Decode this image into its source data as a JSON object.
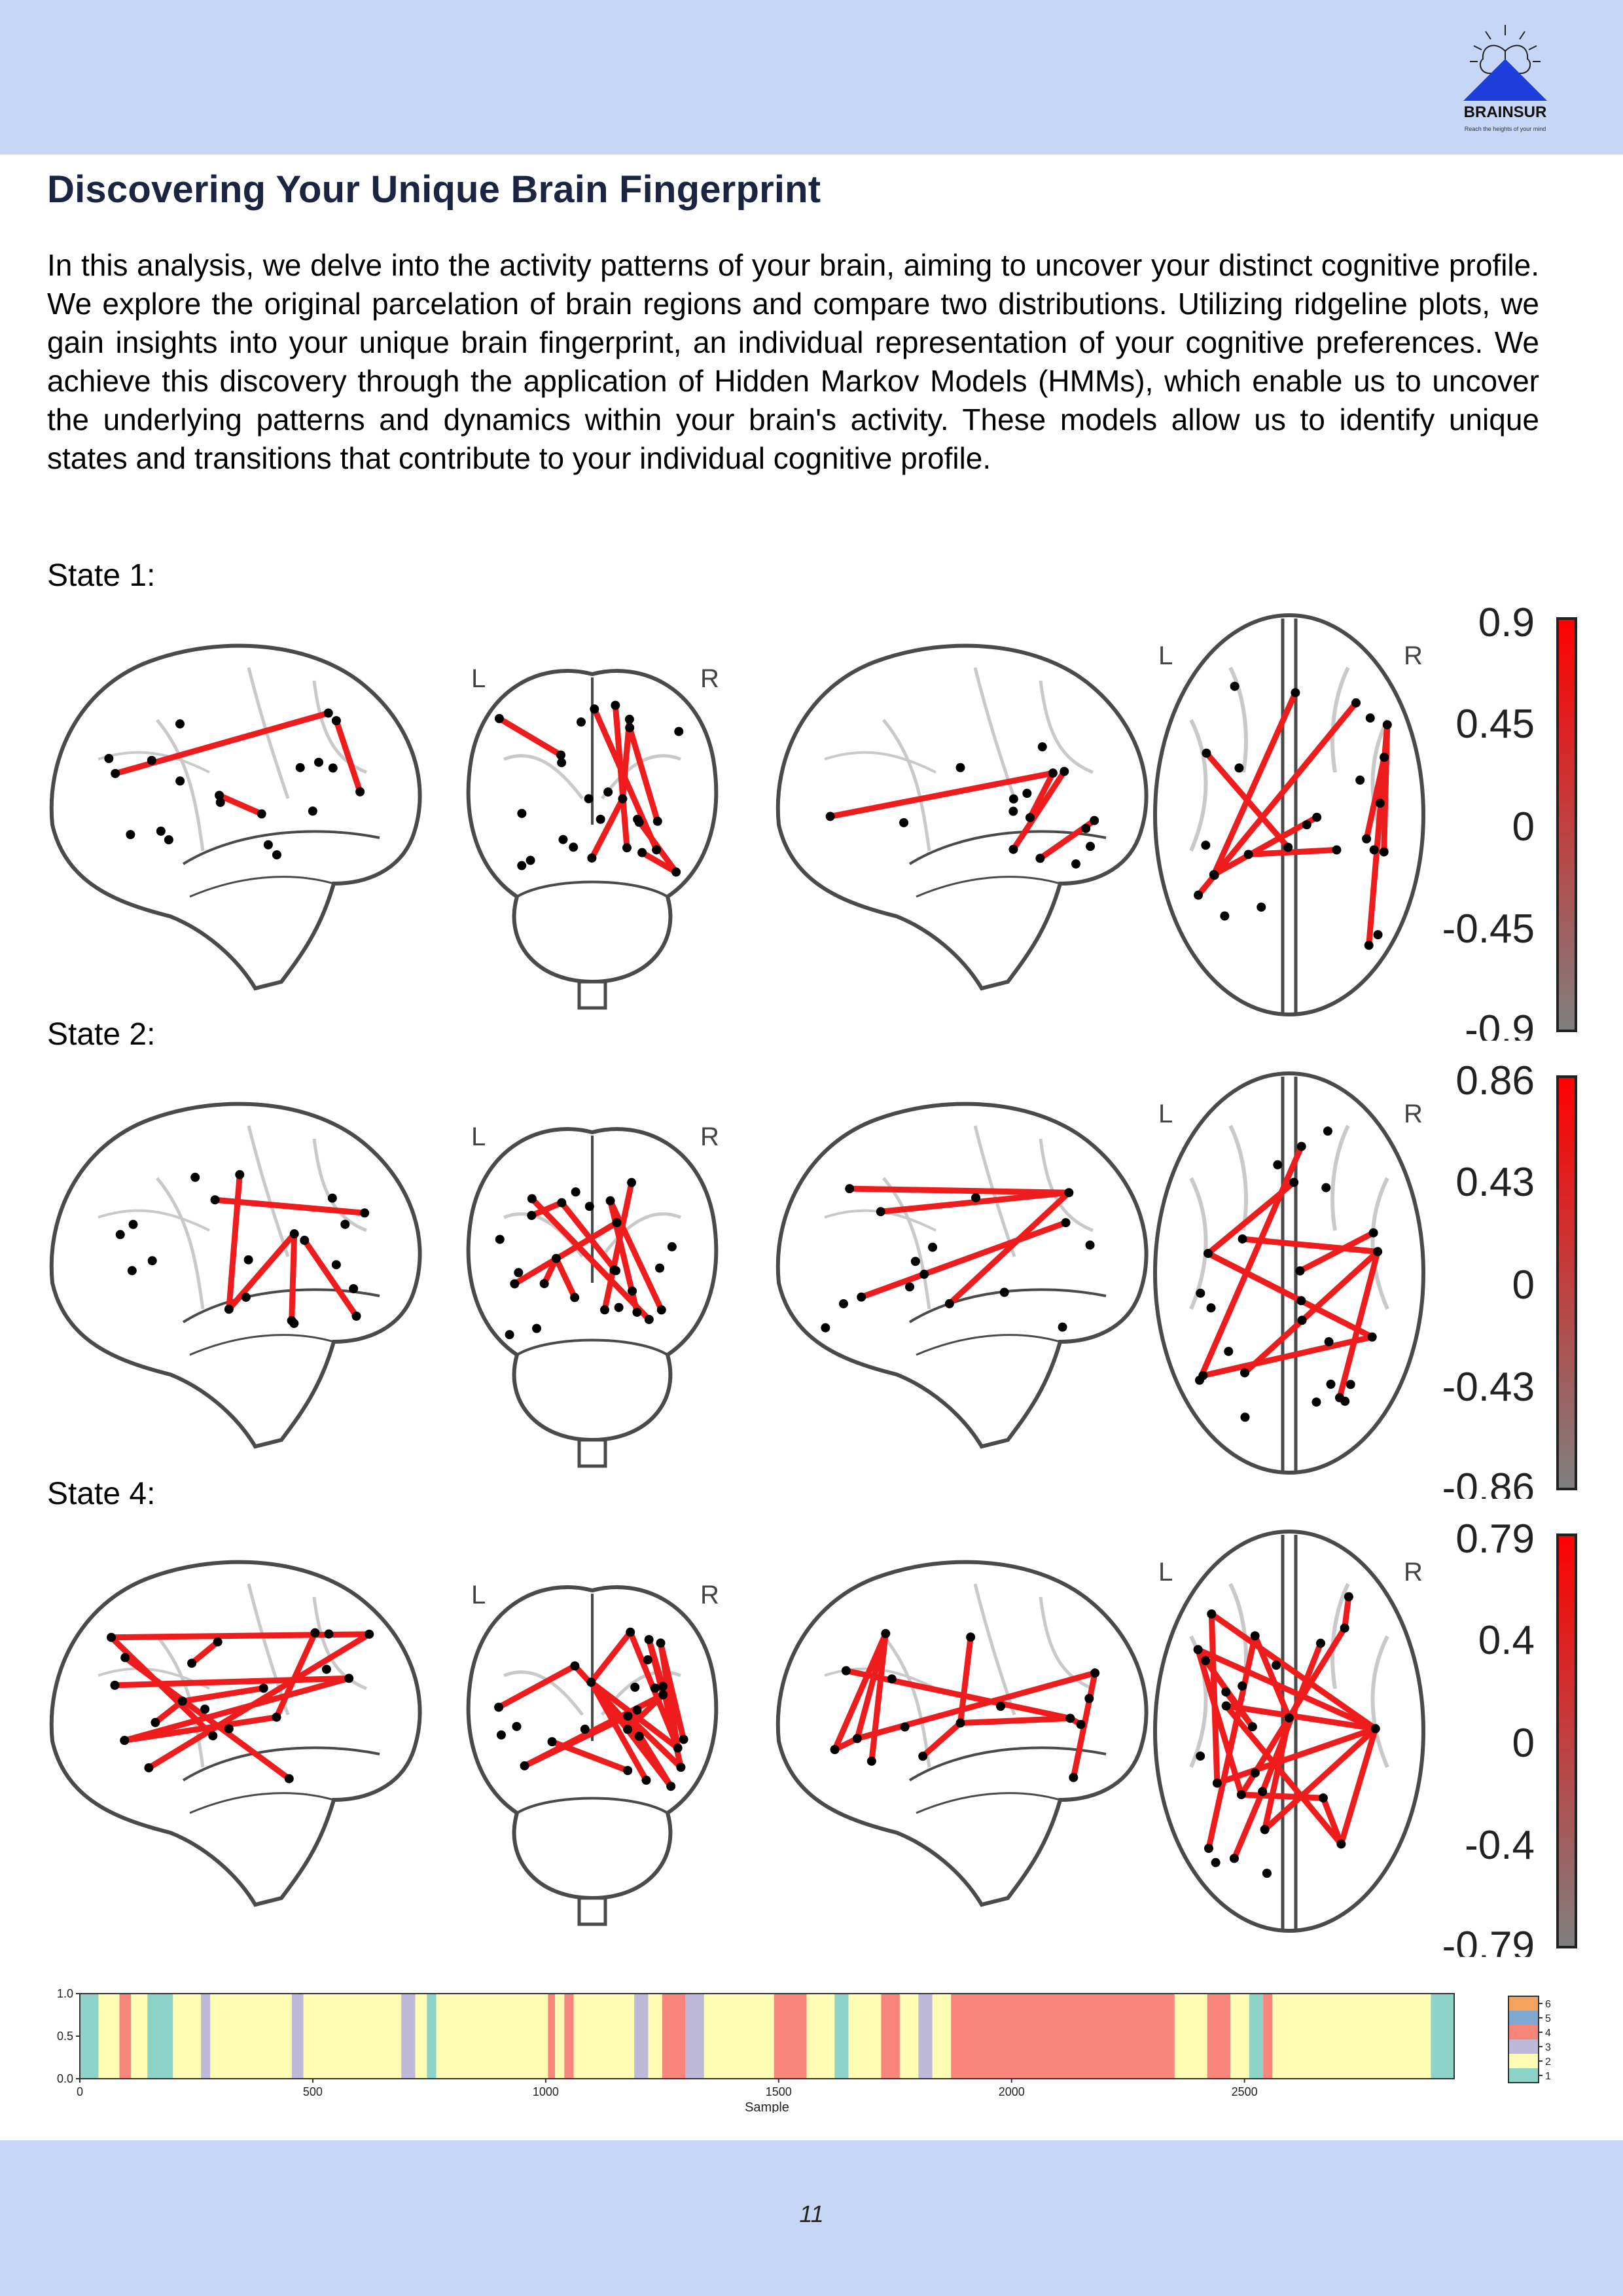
{
  "header": {
    "logo_name": "BRAINSUR",
    "logo_tagline": "Reach the heights of your mind"
  },
  "page_title": "Discovering Your Unique Brain Fingerprint",
  "intro": "In this analysis, we delve into the activity patterns of your brain, aiming to uncover your distinct cognitive profile. We explore the original parcelation of brain regions and compare two distributions. Utilizing ridgeline plots, we gain insights into your unique brain fingerprint, an individual representation of your cognitive preferences. We achieve this discovery through the application of Hidden Markov Models (HMMs), which enable us to uncover the underlying patterns and dynamics within your brain's activity. These models allow us to identify unique states and transitions that contribute to your individual cognitive profile.",
  "hemisphere_labels": {
    "left": "L",
    "right": "R"
  },
  "states": [
    {
      "label": "State 1:",
      "colorbar_ticks": [
        "0.9",
        "0.45",
        "0",
        "-0.45",
        "-0.9"
      ]
    },
    {
      "label": "State 2:",
      "colorbar_ticks": [
        "0.86",
        "0.43",
        "0",
        "-0.43",
        "-0.86"
      ]
    },
    {
      "label": "State 4:",
      "colorbar_ticks": [
        "0.79",
        "0.4",
        "0",
        "-0.4",
        "-0.79"
      ]
    }
  ],
  "colors": {
    "band": "#c5d7f5",
    "title": "#1b2440",
    "connection": "#ee1c1c",
    "node": "#000000",
    "colorbar_top": "#ff0000",
    "colorbar_bottom": "#7f7f7f"
  },
  "chart_data": {
    "type": "area",
    "xlabel": "Sample",
    "ylabel": "",
    "xlim": [
      0,
      2950
    ],
    "ylim": [
      0,
      1
    ],
    "x_ticks": [
      "0",
      "500",
      "1000",
      "1500",
      "2000",
      "2500"
    ],
    "y_ticks": [
      "1.0",
      "0.5",
      "0.0"
    ],
    "legend_position": "right",
    "legend": [
      {
        "name": "6",
        "color": "#f6a35f"
      },
      {
        "name": "5",
        "color": "#80a9d2"
      },
      {
        "name": "4",
        "color": "#f7857b"
      },
      {
        "name": "3",
        "color": "#beb9d9"
      },
      {
        "name": "2",
        "color": "#fdfdb4"
      },
      {
        "name": "1",
        "color": "#8dd3c7"
      }
    ],
    "segments": [
      {
        "start": 0,
        "end": 40,
        "state": "1"
      },
      {
        "start": 40,
        "end": 85,
        "state": "2"
      },
      {
        "start": 85,
        "end": 110,
        "state": "4"
      },
      {
        "start": 110,
        "end": 145,
        "state": "2"
      },
      {
        "start": 145,
        "end": 200,
        "state": "1"
      },
      {
        "start": 200,
        "end": 260,
        "state": "2"
      },
      {
        "start": 260,
        "end": 280,
        "state": "3"
      },
      {
        "start": 280,
        "end": 455,
        "state": "2"
      },
      {
        "start": 455,
        "end": 480,
        "state": "3"
      },
      {
        "start": 480,
        "end": 690,
        "state": "2"
      },
      {
        "start": 690,
        "end": 720,
        "state": "3"
      },
      {
        "start": 720,
        "end": 745,
        "state": "2"
      },
      {
        "start": 745,
        "end": 765,
        "state": "1"
      },
      {
        "start": 765,
        "end": 1005,
        "state": "2"
      },
      {
        "start": 1005,
        "end": 1020,
        "state": "4"
      },
      {
        "start": 1020,
        "end": 1040,
        "state": "2"
      },
      {
        "start": 1040,
        "end": 1060,
        "state": "4"
      },
      {
        "start": 1060,
        "end": 1190,
        "state": "2"
      },
      {
        "start": 1190,
        "end": 1220,
        "state": "3"
      },
      {
        "start": 1220,
        "end": 1250,
        "state": "2"
      },
      {
        "start": 1250,
        "end": 1300,
        "state": "4"
      },
      {
        "start": 1300,
        "end": 1340,
        "state": "3"
      },
      {
        "start": 1340,
        "end": 1490,
        "state": "2"
      },
      {
        "start": 1490,
        "end": 1560,
        "state": "4"
      },
      {
        "start": 1560,
        "end": 1620,
        "state": "2"
      },
      {
        "start": 1620,
        "end": 1650,
        "state": "1"
      },
      {
        "start": 1650,
        "end": 1720,
        "state": "2"
      },
      {
        "start": 1720,
        "end": 1760,
        "state": "4"
      },
      {
        "start": 1760,
        "end": 1800,
        "state": "2"
      },
      {
        "start": 1800,
        "end": 1830,
        "state": "3"
      },
      {
        "start": 1830,
        "end": 1870,
        "state": "2"
      },
      {
        "start": 1870,
        "end": 2350,
        "state": "4"
      },
      {
        "start": 2350,
        "end": 2420,
        "state": "2"
      },
      {
        "start": 2420,
        "end": 2470,
        "state": "4"
      },
      {
        "start": 2470,
        "end": 2510,
        "state": "2"
      },
      {
        "start": 2510,
        "end": 2540,
        "state": "1"
      },
      {
        "start": 2540,
        "end": 2560,
        "state": "4"
      },
      {
        "start": 2560,
        "end": 2900,
        "state": "2"
      },
      {
        "start": 2900,
        "end": 2950,
        "state": "1"
      }
    ]
  },
  "footer": {
    "page_number": "11"
  }
}
